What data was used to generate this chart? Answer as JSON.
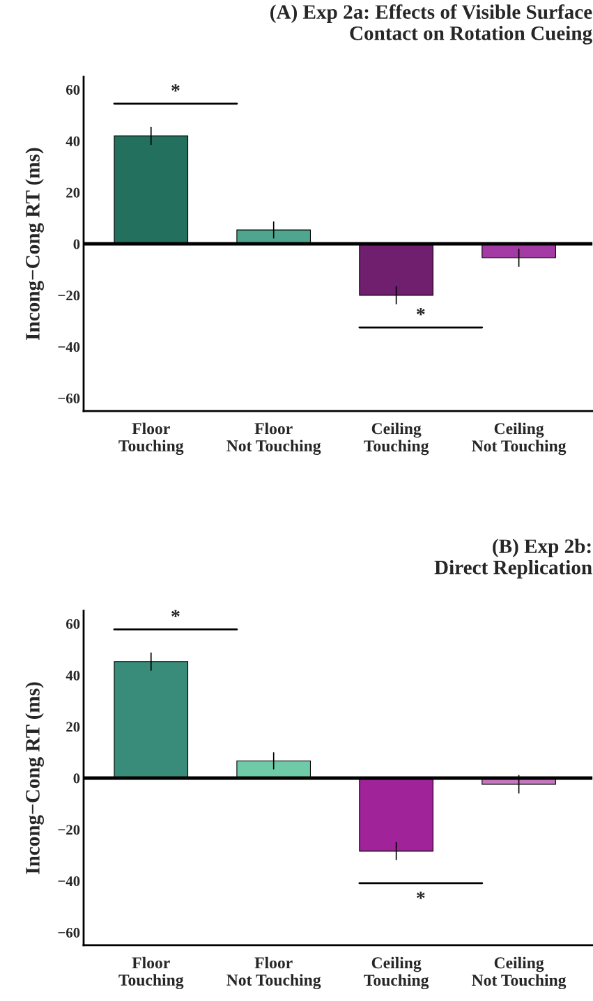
{
  "chart_data": [
    {
      "type": "bar",
      "title": "(A) Exp 2a: Effects of Visible Surface\nContact on Rotation Cueing",
      "ylabel": "Incong−Cong RT (ms)",
      "categories": [
        "Floor\nTouching",
        "Floor\nNot Touching",
        "Ceiling\nTouching",
        "Ceiling\nNot Touching"
      ],
      "values": [
        42,
        5.4,
        -20,
        -5.4
      ],
      "errors": [
        3.5,
        3.3,
        3.5,
        3.5
      ],
      "colors": [
        "#23705f",
        "#4fa68f",
        "#6f1f6e",
        "#a43aa3"
      ],
      "ylim": [
        -65,
        65
      ],
      "yticks": [
        {
          "value": -60,
          "label": "−60"
        },
        {
          "value": -40,
          "label": "−40"
        },
        {
          "value": -20,
          "label": "−20"
        },
        0,
        20,
        40,
        60
      ],
      "ref_lines": [
        {
          "axis": "y",
          "value": 0
        }
      ],
      "annotations": [
        "*",
        "*"
      ],
      "grid": false,
      "legend": false
    },
    {
      "type": "bar",
      "title": "(B) Exp 2b:\nDirect Replication",
      "ylabel": "Incong−Cong RT (ms)",
      "categories": [
        "Floor\nTouching",
        "Floor\nNot Touching",
        "Ceiling\nTouching",
        "Ceiling\nNot Touching"
      ],
      "values": [
        45.3,
        6.7,
        -28.4,
        -2.4
      ],
      "errors": [
        3.5,
        3.3,
        3.5,
        3.6
      ],
      "colors": [
        "#3a8c7a",
        "#6fcaa8",
        "#a0239a",
        "#c576c0"
      ],
      "ylim": [
        -65,
        65
      ],
      "yticks": [
        {
          "value": -60,
          "label": "−60"
        },
        {
          "value": -40,
          "label": "−40"
        },
        {
          "value": -20,
          "label": "−20"
        },
        0,
        20,
        40,
        60
      ],
      "ref_lines": [
        {
          "axis": "y",
          "value": 0
        }
      ],
      "annotations": [
        "*",
        "*"
      ],
      "grid": false,
      "legend": false
    }
  ]
}
